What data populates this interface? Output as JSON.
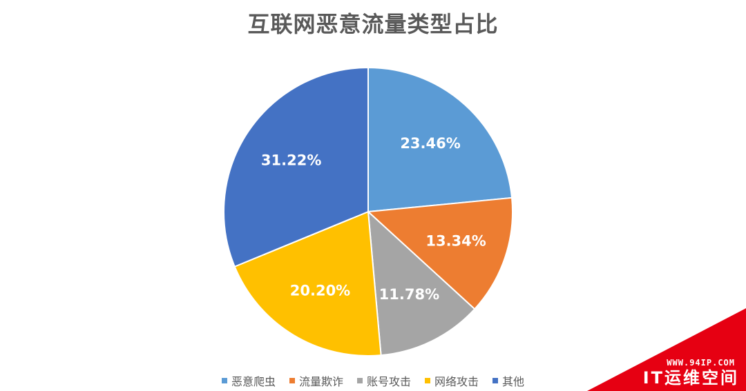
{
  "chart_data": {
    "type": "pie",
    "title": "互联网恶意流量类型占比",
    "slices": [
      {
        "name": "恶意爬虫",
        "value": 23.46,
        "label": "23.46%",
        "color": "#5b9bd5"
      },
      {
        "name": "流量欺诈",
        "value": 13.34,
        "label": "13.34%",
        "color": "#ed7d31"
      },
      {
        "name": "账号攻击",
        "value": 11.78,
        "label": "11.78%",
        "color": "#a5a5a5"
      },
      {
        "name": "网络攻击",
        "value": 20.2,
        "label": "20.20%",
        "color": "#ffc000"
      },
      {
        "name": "其他",
        "value": 31.22,
        "label": "31.22%",
        "color": "#4472c4"
      }
    ],
    "legend_position": "bottom",
    "start_angle": "12 o'clock",
    "direction": "clockwise"
  },
  "watermark": {
    "url": "WWW.94IP.COM",
    "name": "IT运维空间",
    "color": "#e60012"
  }
}
